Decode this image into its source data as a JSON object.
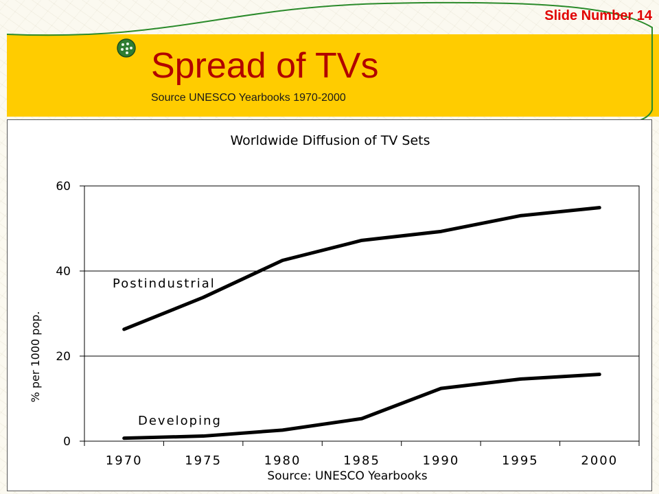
{
  "header": {
    "slide_number": "Slide Number 14",
    "title": "Spread of TVs",
    "subtitle": "Source UNESCO Yearbooks 1970-2000"
  },
  "colors": {
    "title_band": "#ffcc00",
    "title_text": "#b10000",
    "slide_number_text": "#e10000",
    "arc": "#2a8a2a"
  },
  "chart_data": {
    "type": "line",
    "title": "Worldwide Diffusion of  TV Sets",
    "xlabel": "Source: UNESCO Yearbooks",
    "ylabel": "% per 1000 pop.",
    "categories": [
      "1970",
      "1975",
      "1980",
      "1985",
      "1990",
      "1995",
      "2000"
    ],
    "ylim": [
      0,
      60
    ],
    "yticks": [
      0,
      20,
      40,
      60
    ],
    "grid": true,
    "series": [
      {
        "name": "Postindustrial",
        "values": [
          26.3,
          33.8,
          42.5,
          47.2,
          49.3,
          53.0,
          54.9
        ]
      },
      {
        "name": "Developing",
        "values": [
          0.7,
          1.2,
          2.6,
          5.3,
          12.4,
          14.6,
          15.7
        ]
      }
    ]
  }
}
